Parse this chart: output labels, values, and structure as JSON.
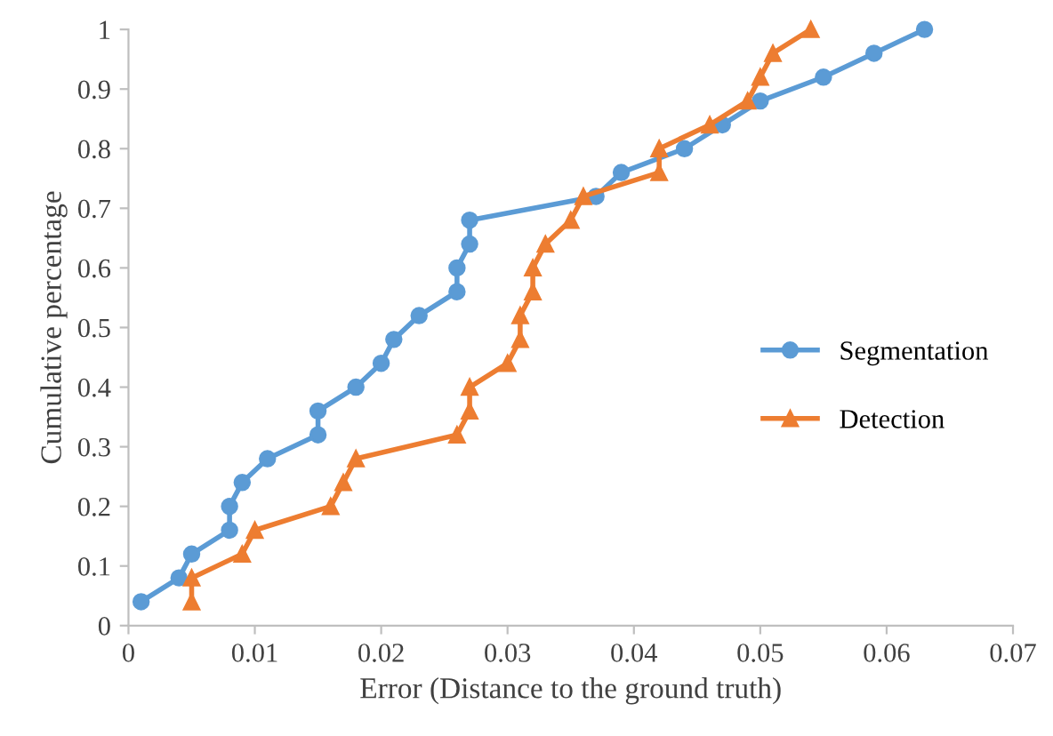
{
  "chart_data": {
    "type": "line",
    "xlabel": "Error (Distance to the ground truth)",
    "ylabel": "Cumulative percentage",
    "xlim": [
      0,
      0.07
    ],
    "ylim": [
      0,
      1
    ],
    "xticks": [
      0,
      0.01,
      0.02,
      0.03,
      0.04,
      0.05,
      0.06,
      0.07
    ],
    "yticks": [
      0,
      0.1,
      0.2,
      0.3,
      0.4,
      0.5,
      0.6,
      0.7,
      0.8,
      0.9,
      1
    ],
    "grid": false,
    "legend": "right",
    "line_style": "solid",
    "series": [
      {
        "name": "Segmentation",
        "color": "#5b9bd5",
        "marker": "circle",
        "x": [
          0.001,
          0.004,
          0.005,
          0.008,
          0.008,
          0.009,
          0.011,
          0.015,
          0.015,
          0.018,
          0.02,
          0.021,
          0.023,
          0.026,
          0.026,
          0.027,
          0.027,
          0.037,
          0.039,
          0.044,
          0.047,
          0.05,
          0.055,
          0.059,
          0.063
        ],
        "values": [
          0.04,
          0.08,
          0.12,
          0.16,
          0.2,
          0.24,
          0.28,
          0.32,
          0.36,
          0.4,
          0.44,
          0.48,
          0.52,
          0.56,
          0.6,
          0.64,
          0.68,
          0.72,
          0.76,
          0.8,
          0.84,
          0.88,
          0.92,
          0.96,
          1
        ]
      },
      {
        "name": "Detection",
        "color": "#ed7d31",
        "marker": "triangle",
        "x": [
          0.005,
          0.005,
          0.009,
          0.01,
          0.016,
          0.017,
          0.018,
          0.026,
          0.027,
          0.027,
          0.03,
          0.031,
          0.031,
          0.032,
          0.032,
          0.033,
          0.035,
          0.036,
          0.042,
          0.042,
          0.046,
          0.049,
          0.05,
          0.051,
          0.054
        ],
        "values": [
          0.04,
          0.08,
          0.12,
          0.16,
          0.2,
          0.24,
          0.28,
          0.32,
          0.36,
          0.4,
          0.44,
          0.48,
          0.52,
          0.56,
          0.6,
          0.64,
          0.68,
          0.72,
          0.76,
          0.8,
          0.84,
          0.88,
          0.92,
          0.96,
          1
        ]
      }
    ]
  }
}
